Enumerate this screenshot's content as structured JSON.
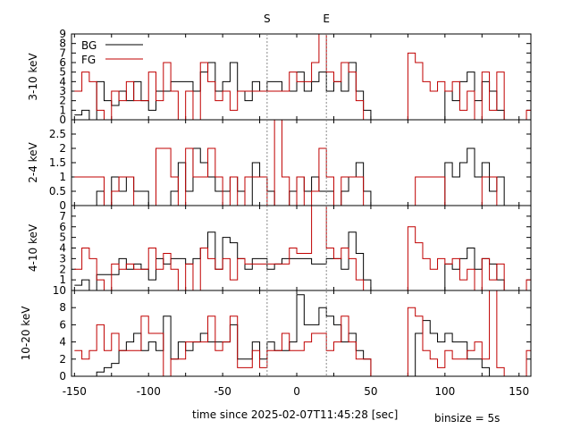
{
  "markers": [
    {
      "label": "S",
      "x": -20
    },
    {
      "label": "E",
      "x": 20
    }
  ],
  "legend": [
    {
      "label": "BG",
      "color": "#000000"
    },
    {
      "label": "FG",
      "color": "#c00000"
    }
  ],
  "xlabel": "time since 2025-02-07T11:45:28 [sec]",
  "binsize_label": "binsize = 5s",
  "colors": {
    "bg": "#000000",
    "fg": "#c00000",
    "marker": "#888888"
  },
  "chart_data": [
    {
      "type": "line",
      "step": true,
      "ylabel": "3-10 keV",
      "xlim": [
        -152,
        158
      ],
      "ylim": [
        0,
        9
      ],
      "yticks": [
        0,
        1,
        2,
        3,
        4,
        5,
        6,
        7,
        8,
        9
      ],
      "x": [
        -150,
        -145,
        -140,
        -135,
        -130,
        -125,
        -120,
        -115,
        -110,
        -105,
        -100,
        -95,
        -90,
        -85,
        -80,
        -75,
        -70,
        -65,
        -60,
        -55,
        -50,
        -45,
        -40,
        -35,
        -30,
        -25,
        -20,
        -15,
        -10,
        -5,
        0,
        5,
        10,
        15,
        20,
        25,
        30,
        35,
        40,
        45,
        50,
        55,
        60,
        65,
        70,
        75,
        80,
        85,
        90,
        95,
        100,
        105,
        110,
        115,
        120,
        125,
        130,
        135,
        140,
        145,
        150,
        155
      ],
      "series": [
        {
          "name": "BG",
          "values": [
            0.5,
            1,
            0,
            4,
            2,
            1.5,
            3,
            2,
            4,
            2,
            1,
            3,
            3,
            4,
            4,
            4,
            3,
            5,
            6,
            3,
            4,
            6,
            3,
            2,
            4,
            3,
            4,
            4,
            3,
            3,
            5,
            3,
            4,
            5,
            3,
            4,
            3,
            6,
            3,
            1,
            0,
            0,
            0,
            0,
            0,
            0,
            0,
            0,
            0,
            0,
            3,
            2,
            4,
            5,
            2,
            4,
            3,
            1,
            0,
            0,
            0,
            0
          ]
        },
        {
          "name": "FG",
          "values": [
            3,
            5,
            4,
            1,
            0,
            3,
            2,
            4,
            2,
            2,
            5,
            2,
            6,
            3,
            0,
            3,
            0,
            6,
            4,
            2,
            3,
            1,
            3,
            3,
            3,
            3,
            3,
            3,
            3,
            5,
            4,
            4,
            6,
            9,
            5,
            4,
            6,
            5,
            2,
            0,
            0,
            0,
            0,
            0,
            0,
            7,
            6,
            4,
            3,
            4,
            3,
            4,
            1,
            3,
            0,
            5,
            1,
            5,
            0,
            0,
            0,
            1
          ]
        }
      ]
    },
    {
      "type": "line",
      "step": true,
      "ylabel": "2-4 keV",
      "xlim": [
        -152,
        158
      ],
      "ylim": [
        0,
        3
      ],
      "yticks": [
        0,
        0.5,
        1,
        1.5,
        2,
        2.5
      ],
      "x": [
        -150,
        -145,
        -140,
        -135,
        -130,
        -125,
        -120,
        -115,
        -110,
        -105,
        -100,
        -95,
        -90,
        -85,
        -80,
        -75,
        -70,
        -65,
        -60,
        -55,
        -50,
        -45,
        -40,
        -35,
        -30,
        -25,
        -20,
        -15,
        -10,
        -5,
        0,
        5,
        10,
        15,
        20,
        25,
        30,
        35,
        40,
        45,
        50,
        55,
        60,
        65,
        70,
        75,
        80,
        85,
        90,
        95,
        100,
        105,
        110,
        115,
        120,
        125,
        130,
        135,
        140,
        145,
        150,
        155
      ],
      "series": [
        {
          "name": "BG",
          "values": [
            0,
            0,
            0,
            0.5,
            0,
            1,
            0.5,
            1,
            0.5,
            0.5,
            0,
            0,
            0,
            0.5,
            1.5,
            0.5,
            2,
            1.5,
            1,
            0.5,
            0.5,
            1,
            0.5,
            0,
            1.5,
            1,
            0.5,
            0,
            0,
            0.5,
            1,
            0.5,
            1,
            0.5,
            0.5,
            0,
            0.5,
            1,
            1.5,
            0.5,
            0,
            0,
            0,
            0,
            0,
            0,
            0,
            0,
            0,
            0,
            1.5,
            1,
            1.5,
            2,
            1,
            1.5,
            0.5,
            1,
            0,
            0,
            0,
            0
          ]
        },
        {
          "name": "FG",
          "values": [
            1,
            1,
            1,
            1,
            0,
            0.5,
            1,
            1,
            0,
            0,
            0,
            2,
            2,
            1,
            0,
            2,
            1,
            1,
            2,
            1,
            0,
            1,
            0,
            1,
            1,
            1,
            0,
            3,
            1,
            0,
            1,
            0,
            0.5,
            2,
            1,
            0,
            1,
            1,
            1,
            0,
            0,
            0,
            0,
            0,
            0,
            0,
            1,
            1,
            1,
            1,
            0,
            0,
            0,
            0,
            0,
            1,
            1,
            0,
            0,
            0,
            0,
            0
          ]
        }
      ]
    },
    {
      "type": "line",
      "step": true,
      "ylabel": "4-10 keV",
      "xlim": [
        -152,
        158
      ],
      "ylim": [
        0,
        8
      ],
      "yticks": [
        1,
        2,
        3,
        4,
        5,
        6,
        7
      ],
      "ytick_bottom_label": "10",
      "x": [
        -150,
        -145,
        -140,
        -135,
        -130,
        -125,
        -120,
        -115,
        -110,
        -105,
        -100,
        -95,
        -90,
        -85,
        -80,
        -75,
        -70,
        -65,
        -60,
        -55,
        -50,
        -45,
        -40,
        -35,
        -30,
        -25,
        -20,
        -15,
        -10,
        -5,
        0,
        5,
        10,
        15,
        20,
        25,
        30,
        35,
        40,
        45,
        50,
        55,
        60,
        65,
        70,
        75,
        80,
        85,
        90,
        95,
        100,
        105,
        110,
        115,
        120,
        125,
        130,
        135,
        140,
        145,
        150,
        155
      ],
      "series": [
        {
          "name": "BG",
          "values": [
            0.5,
            1,
            0,
            1.5,
            1.5,
            1.5,
            3,
            2,
            2.5,
            2,
            1,
            3,
            2.5,
            3,
            3,
            2.5,
            3,
            4,
            5.5,
            2,
            5,
            4.5,
            3,
            2,
            3,
            3,
            2,
            2.5,
            3,
            3,
            3,
            3,
            2.5,
            2.5,
            3,
            3,
            2,
            5.5,
            3.5,
            1,
            0,
            0,
            0,
            0,
            0,
            0,
            0,
            0,
            0,
            0,
            2.5,
            2,
            3,
            4,
            2,
            3,
            2.5,
            1,
            0,
            0,
            0,
            0
          ]
        },
        {
          "name": "FG",
          "values": [
            2,
            4,
            3,
            1,
            0,
            2.5,
            2,
            2.5,
            2,
            2,
            4,
            2,
            3.5,
            2,
            0,
            2.5,
            0,
            4,
            3,
            2,
            3,
            1,
            3,
            2.5,
            2.5,
            2.5,
            2.5,
            2.5,
            2.5,
            4,
            3.5,
            3.5,
            8,
            8,
            4,
            3,
            4,
            3,
            1,
            0,
            0,
            0,
            0,
            0,
            0,
            6,
            4.5,
            3,
            2,
            3,
            2.5,
            3,
            1,
            2,
            0,
            3,
            1,
            2.5,
            0,
            0,
            0,
            1
          ]
        }
      ]
    },
    {
      "type": "line",
      "step": true,
      "ylabel": "10-20 keV",
      "xlim": [
        -152,
        158
      ],
      "ylim": [
        0,
        10
      ],
      "yticks": [
        0,
        2,
        4,
        6,
        8
      ],
      "x": [
        -150,
        -145,
        -140,
        -135,
        -130,
        -125,
        -120,
        -115,
        -110,
        -105,
        -100,
        -95,
        -90,
        -85,
        -80,
        -75,
        -70,
        -65,
        -60,
        -55,
        -50,
        -45,
        -40,
        -35,
        -30,
        -25,
        -20,
        -15,
        -10,
        -5,
        0,
        5,
        10,
        15,
        20,
        25,
        30,
        35,
        40,
        45,
        50,
        55,
        60,
        65,
        70,
        75,
        80,
        85,
        90,
        95,
        100,
        105,
        110,
        115,
        120,
        125,
        130,
        135,
        140,
        145,
        150,
        155
      ],
      "series": [
        {
          "name": "BG",
          "values": [
            0,
            0,
            0,
            0.5,
            1,
            1.5,
            3,
            4,
            5,
            3,
            4,
            3,
            7,
            2,
            4,
            3,
            4,
            5,
            4,
            4,
            4,
            6,
            2,
            2,
            4,
            2,
            4,
            3,
            3,
            4,
            9.5,
            6,
            6,
            8,
            7,
            6,
            4,
            5,
            3,
            2,
            0,
            0,
            0,
            0,
            0,
            0,
            5,
            6.5,
            5,
            4,
            5,
            4,
            4,
            2,
            2,
            1,
            0,
            0,
            0,
            0,
            0,
            0
          ]
        },
        {
          "name": "FG",
          "values": [
            3,
            2,
            3,
            6,
            3,
            5,
            3,
            3,
            3,
            7,
            5,
            5,
            0,
            2,
            2,
            4,
            4,
            4,
            7,
            3,
            4,
            7,
            1,
            1,
            3,
            1,
            3,
            3,
            5,
            3,
            3,
            4,
            5,
            5,
            3,
            4,
            7,
            4,
            2,
            2,
            0,
            0,
            0,
            0,
            0,
            8,
            7,
            3,
            2,
            1,
            3,
            2,
            2,
            3,
            4,
            2,
            10,
            1,
            0,
            0,
            0,
            3
          ]
        }
      ]
    }
  ],
  "xaxis": {
    "ticks": [
      -150,
      -100,
      -50,
      0,
      50,
      100,
      150
    ]
  }
}
